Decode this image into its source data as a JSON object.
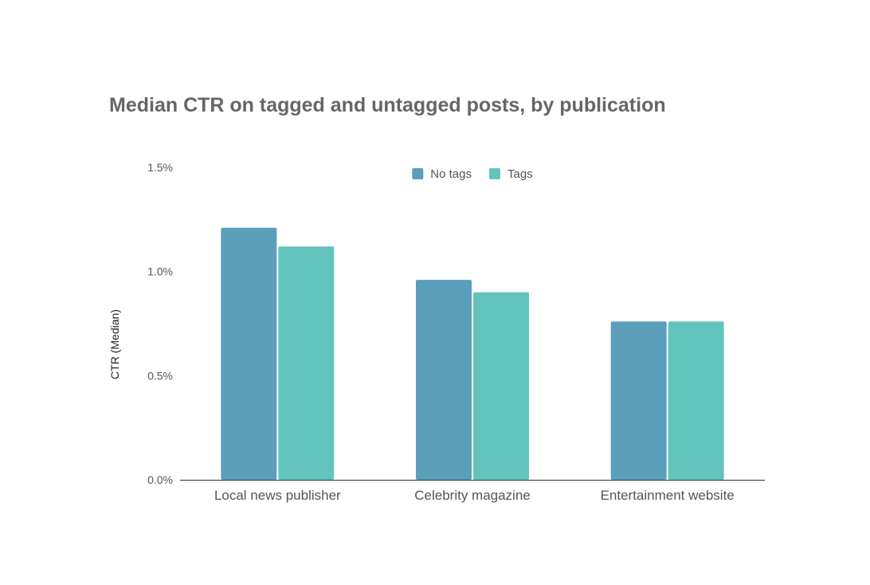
{
  "chart_data": {
    "type": "bar",
    "title": "Median CTR on tagged and untagged posts, by publication",
    "ylabel": "CTR (Median)",
    "xlabel": "",
    "categories": [
      "Local news publisher",
      "Celebrity magazine",
      "Entertainment website"
    ],
    "series": [
      {
        "name": "No tags",
        "color": "#5b9fba",
        "values": [
          1.21,
          0.96,
          0.76
        ]
      },
      {
        "name": "Tags",
        "color": "#63c4bd",
        "values": [
          1.12,
          0.9,
          0.76
        ]
      }
    ],
    "ylim": [
      0,
      1.5
    ],
    "yticks": [
      {
        "value": 0,
        "label": "0.0%"
      },
      {
        "value": 0.5,
        "label": "0.5%"
      },
      {
        "value": 1.0,
        "label": "1.0%"
      },
      {
        "value": 1.5,
        "label": "1.5%"
      }
    ],
    "grid": false,
    "legend_position": "top-center"
  }
}
